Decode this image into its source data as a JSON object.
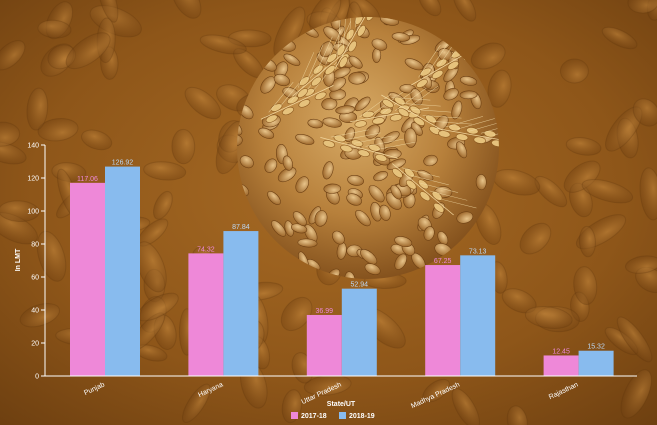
{
  "chart_data": {
    "type": "bar",
    "categories": [
      "Punjab",
      "Haryana",
      "Uttar Pradesh",
      "Madhya Pradesh",
      "Rajasthan"
    ],
    "series": [
      {
        "name": "2017-18",
        "values": [
          117.06,
          74.32,
          36.99,
          67.25,
          12.45
        ],
        "color": "#ee88d8",
        "label_color": "#ee88d8"
      },
      {
        "name": "2018-19",
        "values": [
          126.92,
          87.84,
          52.94,
          73.13,
          15.32
        ],
        "color": "#88bbee",
        "label_color": "#bcd8f4"
      }
    ],
    "value_labels": {
      "2017-18": [
        "117.06",
        "74.32",
        "36.99",
        "67.25",
        "12.45"
      ],
      "2018-19": [
        "126.92",
        "87.84",
        "52.94",
        "73.13",
        "15.32"
      ]
    },
    "ylabel": "In LMT",
    "xlabel": "State/UT",
    "ylim": [
      0,
      140
    ],
    "yticks": [
      "0",
      "20",
      "40",
      "60",
      "80",
      "100",
      "120",
      "140"
    ],
    "ytick_values": [
      0,
      20,
      40,
      60,
      80,
      100,
      120,
      140
    ],
    "legend_position": "bottom",
    "grid": false,
    "background": "wheat-grain-photo",
    "decoration": "wheat-ears-circle-photo"
  }
}
